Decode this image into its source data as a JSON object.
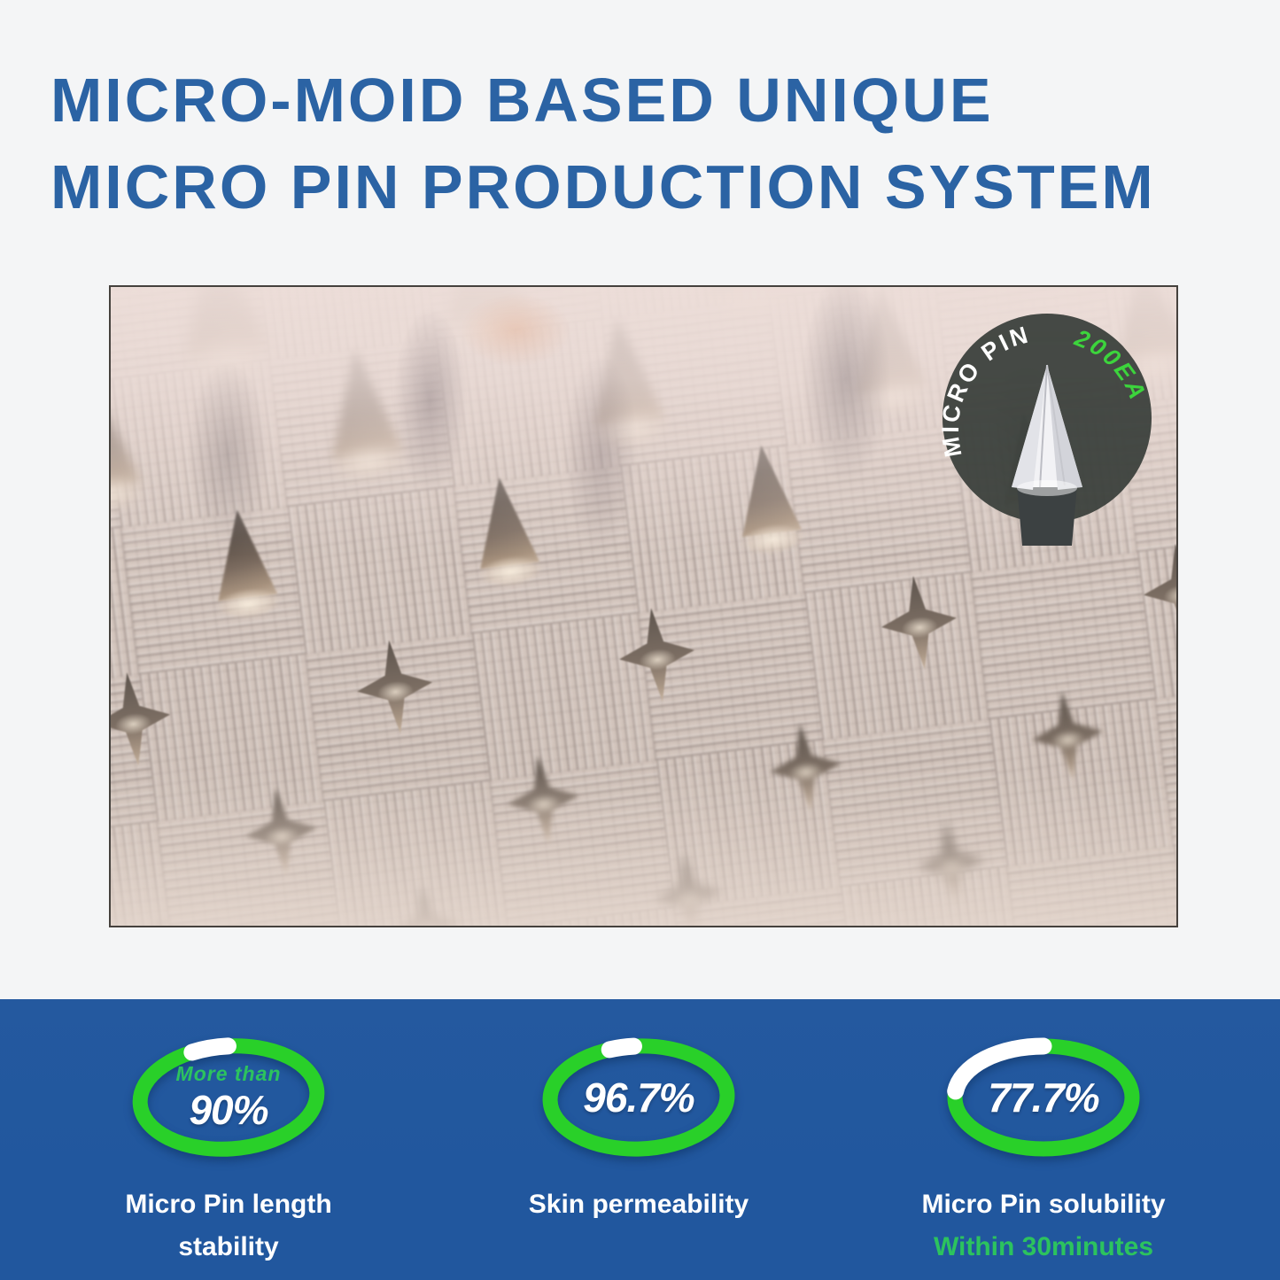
{
  "title": {
    "line1": "MICRO-MOID BASED UNIQUE",
    "line2": "MICRO PIN PRODUCTION SYSTEM"
  },
  "badge": {
    "text_primary": "MICRO PIN",
    "text_count": "200EA"
  },
  "stats": [
    {
      "prefix": "More than",
      "value": "90%",
      "percent": 90,
      "label_line1": "Micro Pin length",
      "label_line2": "stability",
      "sublabel": "",
      "gap": {
        "start": -22,
        "end": 2
      },
      "tilt": -4
    },
    {
      "prefix": "",
      "value": "96.7%",
      "percent": 96.7,
      "label_line1": "Skin permeability",
      "label_line2": "",
      "sublabel": "",
      "gap": {
        "start": -18,
        "end": -2
      },
      "tilt": -2
    },
    {
      "prefix": "",
      "value": "77.7%",
      "percent": 77.7,
      "label_line1": "Micro Pin solubility",
      "label_line2": "",
      "sublabel": "Within 30minutes",
      "gap": {
        "start": -83,
        "end": 0
      },
      "tilt": 0
    }
  ],
  "colors": {
    "title_blue": "#2b63a4",
    "band_blue": "#21579e",
    "ring_green": "#29d029",
    "accent_green": "#2cc35e",
    "badge_bg": "#3a403b",
    "badge_green": "#3cd43c"
  }
}
